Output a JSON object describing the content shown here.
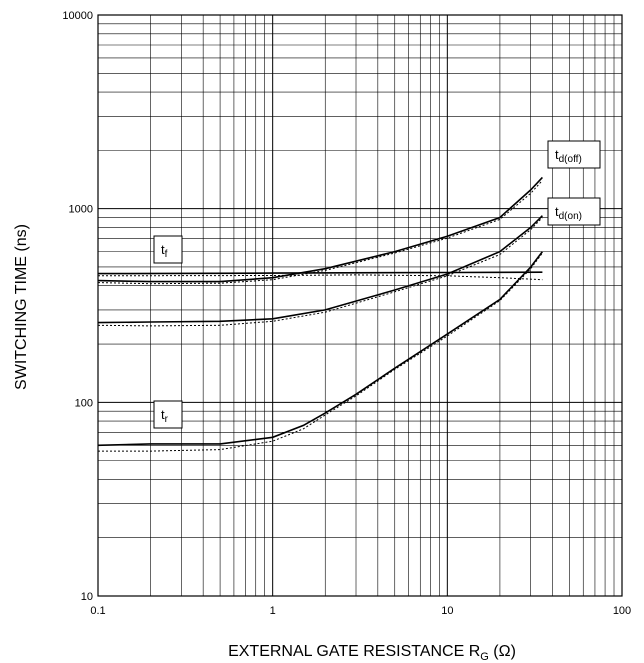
{
  "chart_data": {
    "type": "line",
    "xscale": "log",
    "yscale": "log",
    "xlim": [
      0.1,
      100
    ],
    "ylim": [
      10,
      10000
    ],
    "grid": true,
    "xlabel": {
      "main": "EXTERNAL GATE RESISTANCE",
      "symbol": "R",
      "sub": "G",
      "unit": "(Ω)"
    },
    "ylabel": "SWITCHING TIME (ns)",
    "x_ticks": [
      "0.1",
      "1",
      "10",
      "100"
    ],
    "y_ticks": [
      "10",
      "100",
      "1000",
      "10000"
    ],
    "labels": [
      {
        "id": "tf",
        "base": "t",
        "sub": "f"
      },
      {
        "id": "tr",
        "base": "t",
        "sub": "r"
      },
      {
        "id": "tdoff",
        "base": "t",
        "sub": "d(off)"
      },
      {
        "id": "tdon",
        "base": "t",
        "sub": "d(on)"
      }
    ],
    "series": [
      {
        "id": "tdoff",
        "style": "solid",
        "x": [
          0.1,
          0.2,
          0.5,
          1,
          2,
          5,
          10,
          20,
          30,
          35
        ],
        "y": [
          425,
          420,
          420,
          440,
          490,
          600,
          720,
          900,
          1250,
          1450
        ]
      },
      {
        "id": "tdoff",
        "style": "dotted",
        "x": [
          0.1,
          0.2,
          0.5,
          1,
          2,
          5,
          10,
          20,
          30,
          35
        ],
        "y": [
          415,
          410,
          412,
          430,
          480,
          590,
          705,
          880,
          1200,
          1400
        ]
      },
      {
        "id": "tdon",
        "style": "solid",
        "x": [
          0.1,
          0.2,
          0.5,
          1,
          2,
          5,
          10,
          20,
          30,
          35
        ],
        "y": [
          258,
          260,
          262,
          270,
          300,
          380,
          460,
          600,
          800,
          920
        ]
      },
      {
        "id": "tdon",
        "style": "dotted",
        "x": [
          0.1,
          0.2,
          0.5,
          1,
          2,
          5,
          10,
          20,
          30,
          35
        ],
        "y": [
          250,
          248,
          250,
          262,
          292,
          372,
          450,
          580,
          780,
          900
        ]
      },
      {
        "id": "tr",
        "style": "solid",
        "x": [
          0.1,
          0.2,
          0.5,
          1,
          1.5,
          2,
          3,
          5,
          10,
          20,
          30,
          35
        ],
        "y": [
          60,
          61,
          61,
          66,
          76,
          88,
          110,
          150,
          225,
          340,
          500,
          600
        ]
      },
      {
        "id": "tr",
        "style": "dotted",
        "x": [
          0.1,
          0.2,
          0.5,
          1,
          1.5,
          2,
          3,
          5,
          10,
          20,
          30,
          35
        ],
        "y": [
          56,
          56,
          57,
          63,
          73,
          86,
          108,
          148,
          220,
          335,
          490,
          590
        ]
      },
      {
        "id": "tf",
        "style": "solid",
        "x": [
          0.1,
          1,
          10,
          35
        ],
        "y": [
          462,
          465,
          468,
          470
        ]
      },
      {
        "id": "tf",
        "style": "dotted",
        "x": [
          0.1,
          1,
          3,
          10,
          20,
          35
        ],
        "y": [
          450,
          452,
          455,
          450,
          440,
          430
        ]
      }
    ]
  }
}
